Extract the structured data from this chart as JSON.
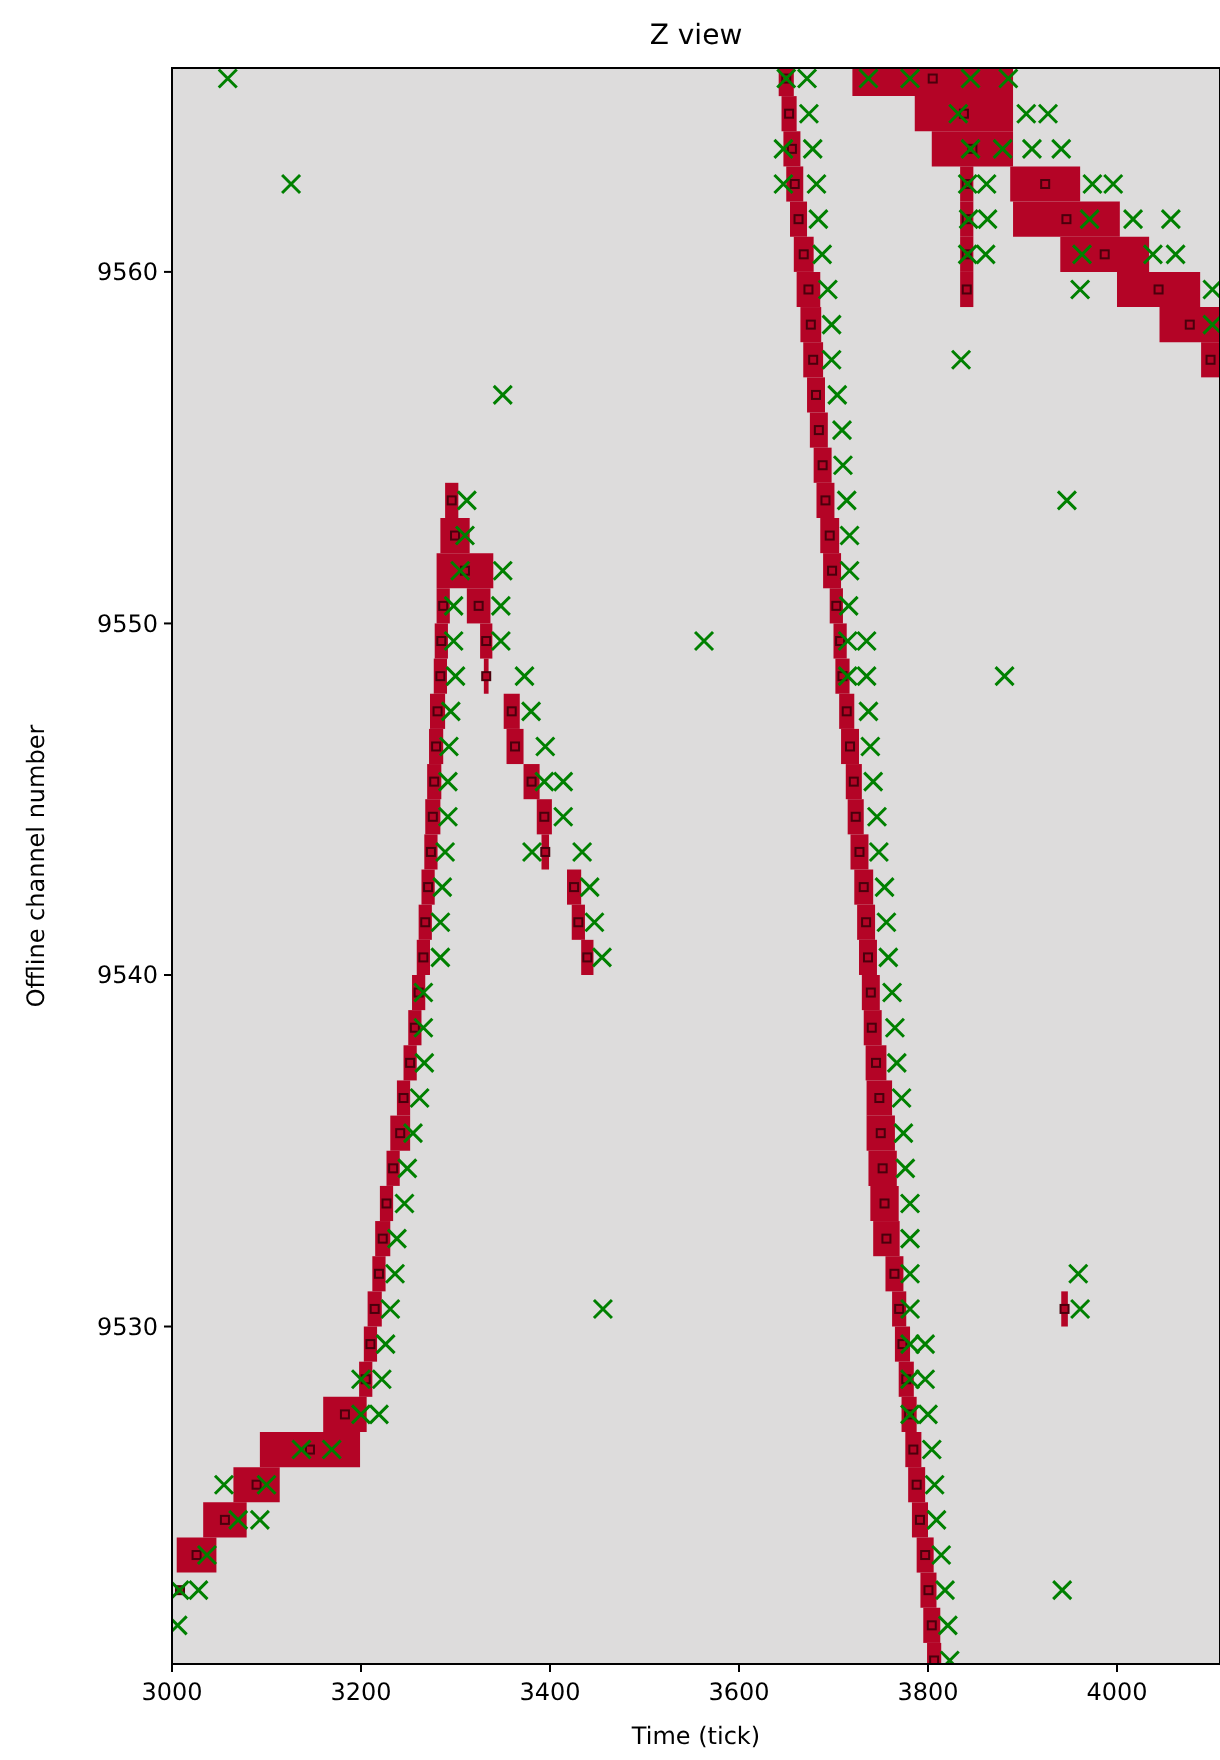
{
  "chart_data": {
    "type": "scatter",
    "title": "Z view",
    "xlabel": "Time (tick)",
    "ylabel": "Offline channel number",
    "xlim": [
      3000,
      4109
    ],
    "ylim": [
      9520.4,
      9565.8
    ],
    "xticks": [
      3000,
      3200,
      3400,
      3600,
      3800,
      4000
    ],
    "yticks": [
      9530,
      9540,
      9550,
      9560
    ],
    "series": [
      {
        "marker": "square",
        "color": "#b40426",
        "x": [
          3008.5,
          3026,
          3056,
          3089.5,
          3146,
          3183,
          3205,
          3210,
          3214.5,
          3219,
          3223,
          3227,
          3234,
          3241.5,
          3245,
          3252,
          3257,
          3261,
          3266,
          3268,
          3271,
          3274,
          3276,
          3277.5,
          3279.5,
          3281,
          3284,
          3285,
          3287,
          3310,
          3299.5,
          3296,
          3324.5,
          3332.5,
          3332.5,
          3359.5,
          3363,
          3380.5,
          3394,
          3395,
          3425.5,
          3430,
          3439.5,
          3650,
          3653,
          3656,
          3659,
          3663,
          3668.5,
          3673.5,
          3676,
          3678.5,
          3681.5,
          3684.5,
          3688.5,
          3691.5,
          3696,
          3698.5,
          3703,
          3707,
          3709.5,
          3714,
          3717.5,
          3721.5,
          3723.5,
          3727.5,
          3732,
          3734.5,
          3736.5,
          3739.5,
          3740.5,
          3745,
          3748.5,
          3750,
          3752,
          3754,
          3756,
          3764.5,
          3769.5,
          3773,
          3777,
          3780,
          3784.5,
          3788,
          3791.5,
          3797,
          3800.5,
          3804,
          3806.5,
          3805,
          3838,
          3847,
          3924,
          3946.5,
          3987,
          4044,
          4077,
          4099,
          3841,
          3841,
          3841,
          3841,
          3944.5
        ],
        "values": [
          9522.5,
          9523.5,
          9524.5,
          9525.5,
          9526.5,
          9527.5,
          9528.5,
          9529.5,
          9530.5,
          9531.5,
          9532.5,
          9533.5,
          9534.5,
          9535.5,
          9536.5,
          9537.5,
          9538.5,
          9539.5,
          9540.5,
          9541.5,
          9542.5,
          9543.5,
          9544.5,
          9545.5,
          9546.5,
          9547.5,
          9548.5,
          9549.5,
          9550.5,
          9551.5,
          9552.5,
          9553.5,
          9550.5,
          9549.5,
          9548.5,
          9547.5,
          9546.5,
          9545.5,
          9544.5,
          9543.5,
          9542.5,
          9541.5,
          9540.5,
          9565.5,
          9564.5,
          9563.5,
          9562.5,
          9561.5,
          9560.5,
          9559.5,
          9558.5,
          9557.5,
          9556.5,
          9555.5,
          9554.5,
          9553.5,
          9552.5,
          9551.5,
          9550.5,
          9549.5,
          9548.5,
          9547.5,
          9546.5,
          9545.5,
          9544.5,
          9543.5,
          9542.5,
          9541.5,
          9540.5,
          9539.5,
          9538.5,
          9537.5,
          9536.5,
          9535.5,
          9534.5,
          9533.5,
          9532.5,
          9531.5,
          9530.5,
          9529.5,
          9528.5,
          9527.5,
          9526.5,
          9525.5,
          9524.5,
          9523.5,
          9522.5,
          9521.5,
          9520.5,
          9565.5,
          9564.5,
          9563.5,
          9562.5,
          9561.5,
          9560.5,
          9559.5,
          9558.5,
          9557.5,
          9562.5,
          9561.5,
          9560.5,
          9559.5,
          9530.5
        ],
        "xerrors": [
          null,
          [
            3005,
            3047
          ],
          [
            3033,
            3079
          ],
          [
            3065,
            3114
          ],
          [
            3093,
            3199
          ],
          [
            3160,
            3206
          ],
          [
            3198,
            3212
          ],
          [
            3203,
            3217
          ],
          [
            3207,
            3222
          ],
          [
            3212,
            3226
          ],
          [
            3215,
            3231
          ],
          [
            3220,
            3234
          ],
          [
            3227,
            3241
          ],
          [
            3231,
            3252
          ],
          [
            3238,
            3252
          ],
          [
            3245,
            3259
          ],
          [
            3250,
            3264
          ],
          [
            3254,
            3268
          ],
          [
            3259,
            3273
          ],
          [
            3261,
            3275
          ],
          [
            3264,
            3278
          ],
          [
            3267,
            3281
          ],
          [
            3268,
            3284
          ],
          [
            3270,
            3285
          ],
          [
            3272,
            3287
          ],
          [
            3273,
            3289
          ],
          [
            3277,
            3291
          ],
          [
            3278,
            3292
          ],
          [
            3280,
            3294
          ],
          [
            3280,
            3340
          ],
          [
            3284,
            3315
          ],
          [
            3289,
            3303
          ],
          [
            3312,
            3337
          ],
          [
            3326,
            3339
          ],
          [
            3330,
            3335
          ],
          [
            3351,
            3368
          ],
          [
            3354,
            3372
          ],
          [
            3372,
            3389
          ],
          [
            3386,
            3402
          ],
          [
            3391,
            3399
          ],
          [
            3418,
            3433
          ],
          [
            3423,
            3437
          ],
          [
            3433,
            3446
          ],
          [
            3642,
            3658
          ],
          [
            3645,
            3661
          ],
          [
            3647,
            3665
          ],
          [
            3650,
            3668
          ],
          [
            3654,
            3672
          ],
          [
            3658,
            3679
          ],
          [
            3661,
            3686
          ],
          [
            3665,
            3687
          ],
          [
            3668,
            3689
          ],
          [
            3672,
            3691
          ],
          [
            3675,
            3694
          ],
          [
            3679,
            3698
          ],
          [
            3682,
            3701
          ],
          [
            3686,
            3706
          ],
          [
            3689,
            3708
          ],
          [
            3696,
            3710
          ],
          [
            3700,
            3714
          ],
          [
            3702,
            3717
          ],
          [
            3706,
            3722
          ],
          [
            3708,
            3727
          ],
          [
            3713,
            3730
          ],
          [
            3715,
            3732
          ],
          [
            3718,
            3737
          ],
          [
            3722,
            3742
          ],
          [
            3725,
            3744
          ],
          [
            3727,
            3746
          ],
          [
            3730,
            3749
          ],
          [
            3732,
            3751
          ],
          [
            3734,
            3756
          ],
          [
            3735,
            3762
          ],
          [
            3735,
            3765
          ],
          [
            3737,
            3767
          ],
          [
            3739,
            3769
          ],
          [
            3742,
            3770
          ],
          [
            3755,
            3774
          ],
          [
            3762,
            3777
          ],
          [
            3765,
            3781
          ],
          [
            3769,
            3785
          ],
          [
            3772,
            3788
          ],
          [
            3776,
            3793
          ],
          [
            3779,
            3797
          ],
          [
            3783,
            3800
          ],
          [
            3788,
            3806
          ],
          [
            3792,
            3809
          ],
          [
            3795,
            3813
          ],
          [
            3799,
            3814
          ],
          [
            3720,
            3890
          ],
          [
            3786,
            3890
          ],
          [
            3804,
            3890
          ],
          [
            3887,
            3961
          ],
          [
            3890,
            4003
          ],
          [
            3940,
            4034
          ],
          [
            4000,
            4088
          ],
          [
            4045,
            4109
          ],
          [
            4089,
            4109
          ],
          [
            3834,
            3848
          ],
          [
            3834,
            3848
          ],
          [
            3834,
            3848
          ],
          [
            3834,
            3848
          ],
          [
            3941,
            3948
          ]
        ]
      },
      {
        "marker": "cross",
        "color": "#008000",
        "x": [
          3059,
          3126,
          3350,
          3312,
          3310,
          3305,
          3350,
          3298,
          3348,
          3298,
          3348,
          3300,
          3373,
          3295,
          3380,
          3293,
          3395,
          3292,
          3394,
          3414,
          3292,
          3414,
          3289,
          3381,
          3434,
          3286,
          3442,
          3284,
          3447,
          3284,
          3455,
          3266,
          3266,
          3267,
          3262,
          3255,
          3249,
          3246,
          3238,
          3236,
          3231,
          3226,
          3200,
          3222,
          3200,
          3219,
          3137,
          3169,
          3055,
          3100,
          3070,
          3093,
          3037,
          3008,
          3028,
          3006,
          3456,
          3650,
          3672,
          3737,
          3781,
          3845,
          3885,
          3674,
          3832,
          3904,
          3927,
          3647,
          3678,
          3845,
          3879,
          3910,
          3941,
          3647,
          3682,
          3842,
          3862,
          3974,
          3996,
          3684,
          3843,
          3863,
          3971,
          4017,
          4057,
          3688,
          3842,
          3861,
          3963,
          4038,
          4062,
          3694,
          3961,
          4101,
          3698,
          4101,
          3698,
          3835,
          3704,
          3709,
          3710,
          3714,
          3947,
          3717,
          3717,
          3716,
          3563,
          3715,
          3735,
          3715,
          3735,
          3881,
          3737,
          3739,
          3742,
          3746,
          3748,
          3754,
          3756,
          3758,
          3762,
          3765,
          3767,
          3772,
          3774,
          3776,
          3781,
          3781,
          3781,
          3959,
          3781,
          3961,
          3781,
          3797,
          3781,
          3797,
          3781,
          3800,
          3804,
          3807,
          3809,
          3814,
          3818,
          3942,
          3821,
          3823
        ],
        "values": [
          9565.5,
          9562.5,
          9556.5,
          9553.5,
          9552.5,
          9551.5,
          9551.5,
          9550.5,
          9550.5,
          9549.5,
          9549.5,
          9548.5,
          9548.5,
          9547.5,
          9547.5,
          9546.5,
          9546.5,
          9545.5,
          9545.5,
          9545.5,
          9544.5,
          9544.5,
          9543.5,
          9543.5,
          9543.5,
          9542.5,
          9542.5,
          9541.5,
          9541.5,
          9540.5,
          9540.5,
          9539.5,
          9538.5,
          9537.5,
          9536.5,
          9535.5,
          9534.5,
          9533.5,
          9532.5,
          9531.5,
          9530.5,
          9529.5,
          9528.5,
          9528.5,
          9527.5,
          9527.5,
          9526.5,
          9526.5,
          9525.5,
          9525.5,
          9524.5,
          9524.5,
          9523.5,
          9522.5,
          9522.5,
          9521.5,
          9530.5,
          9565.5,
          9565.5,
          9565.5,
          9565.5,
          9565.5,
          9565.5,
          9564.5,
          9564.5,
          9564.5,
          9564.5,
          9563.5,
          9563.5,
          9563.5,
          9563.5,
          9563.5,
          9563.5,
          9562.5,
          9562.5,
          9562.5,
          9562.5,
          9562.5,
          9562.5,
          9561.5,
          9561.5,
          9561.5,
          9561.5,
          9561.5,
          9561.5,
          9560.5,
          9560.5,
          9560.5,
          9560.5,
          9560.5,
          9560.5,
          9559.5,
          9559.5,
          9559.5,
          9558.5,
          9558.5,
          9557.5,
          9557.5,
          9556.5,
          9555.5,
          9554.5,
          9553.5,
          9553.5,
          9552.5,
          9551.5,
          9550.5,
          9549.5,
          9549.5,
          9549.5,
          9548.5,
          9548.5,
          9548.5,
          9547.5,
          9546.5,
          9545.5,
          9544.5,
          9543.5,
          9542.5,
          9541.5,
          9540.5,
          9539.5,
          9538.5,
          9537.5,
          9536.5,
          9535.5,
          9534.5,
          9533.5,
          9532.5,
          9531.5,
          9531.5,
          9530.5,
          9530.5,
          9529.5,
          9529.5,
          9528.5,
          9528.5,
          9527.5,
          9527.5,
          9526.5,
          9525.5,
          9524.5,
          9523.5,
          9522.5,
          9522.5,
          9521.5,
          9520.5
        ]
      }
    ]
  }
}
